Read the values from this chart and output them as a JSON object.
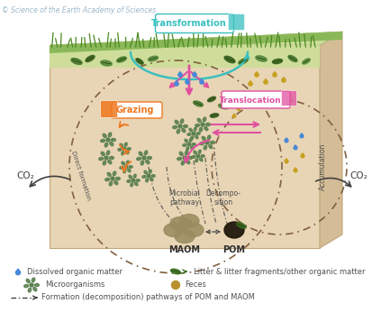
{
  "title_text": "© Science of the Earth Academy of Sciences",
  "title_color": "#9ab8cc",
  "title_fontsize": 5.5,
  "soil_bg": "#e8d5b5",
  "soil_right_face": "#d4bc96",
  "soil_top_face": "#c8d8a0",
  "grass_light": "#cede9a",
  "grass_dark": "#8ab858",
  "transformation_color": "#3bbfbf",
  "translocation_color": "#e050a0",
  "grazing_color": "#f07820",
  "maom_color": "#9a8c60",
  "pom_dark": "#2a2018",
  "pom_green": "#3a6020",
  "co2_color": "#404040",
  "arrow_dark": "#404040",
  "arrow_pink": "#e050a0",
  "arrow_orange": "#f07820",
  "arrow_teal": "#3bbfbf",
  "water_blue": "#4888d8",
  "water_gold": "#c8a020",
  "microbe_color": "#5a8050",
  "leaf_dark": "#3a6020",
  "leaf_med": "#5a8840",
  "legend_color": "#505050",
  "legend_fs": 6.0,
  "transformation_label": "Transformation",
  "translocation_label": "Translocation",
  "grazing_label": "Grazing",
  "maom_label": "MAOM",
  "pom_label": "POM",
  "microbial_label": "Microbial\npathway",
  "decompo_label": "Decompo-\nsition",
  "accum_label": "Accumulation",
  "direct_label": "Direct formation",
  "co2_label": "CO₂",
  "legend1": "Dissolved organic matter",
  "legend2": "Litter & litter fragments/other organic matter",
  "legend3": "Microorganisms",
  "legend4": "Feces",
  "legend5": "Formation (decomposition) pathways of POM and MAOM"
}
